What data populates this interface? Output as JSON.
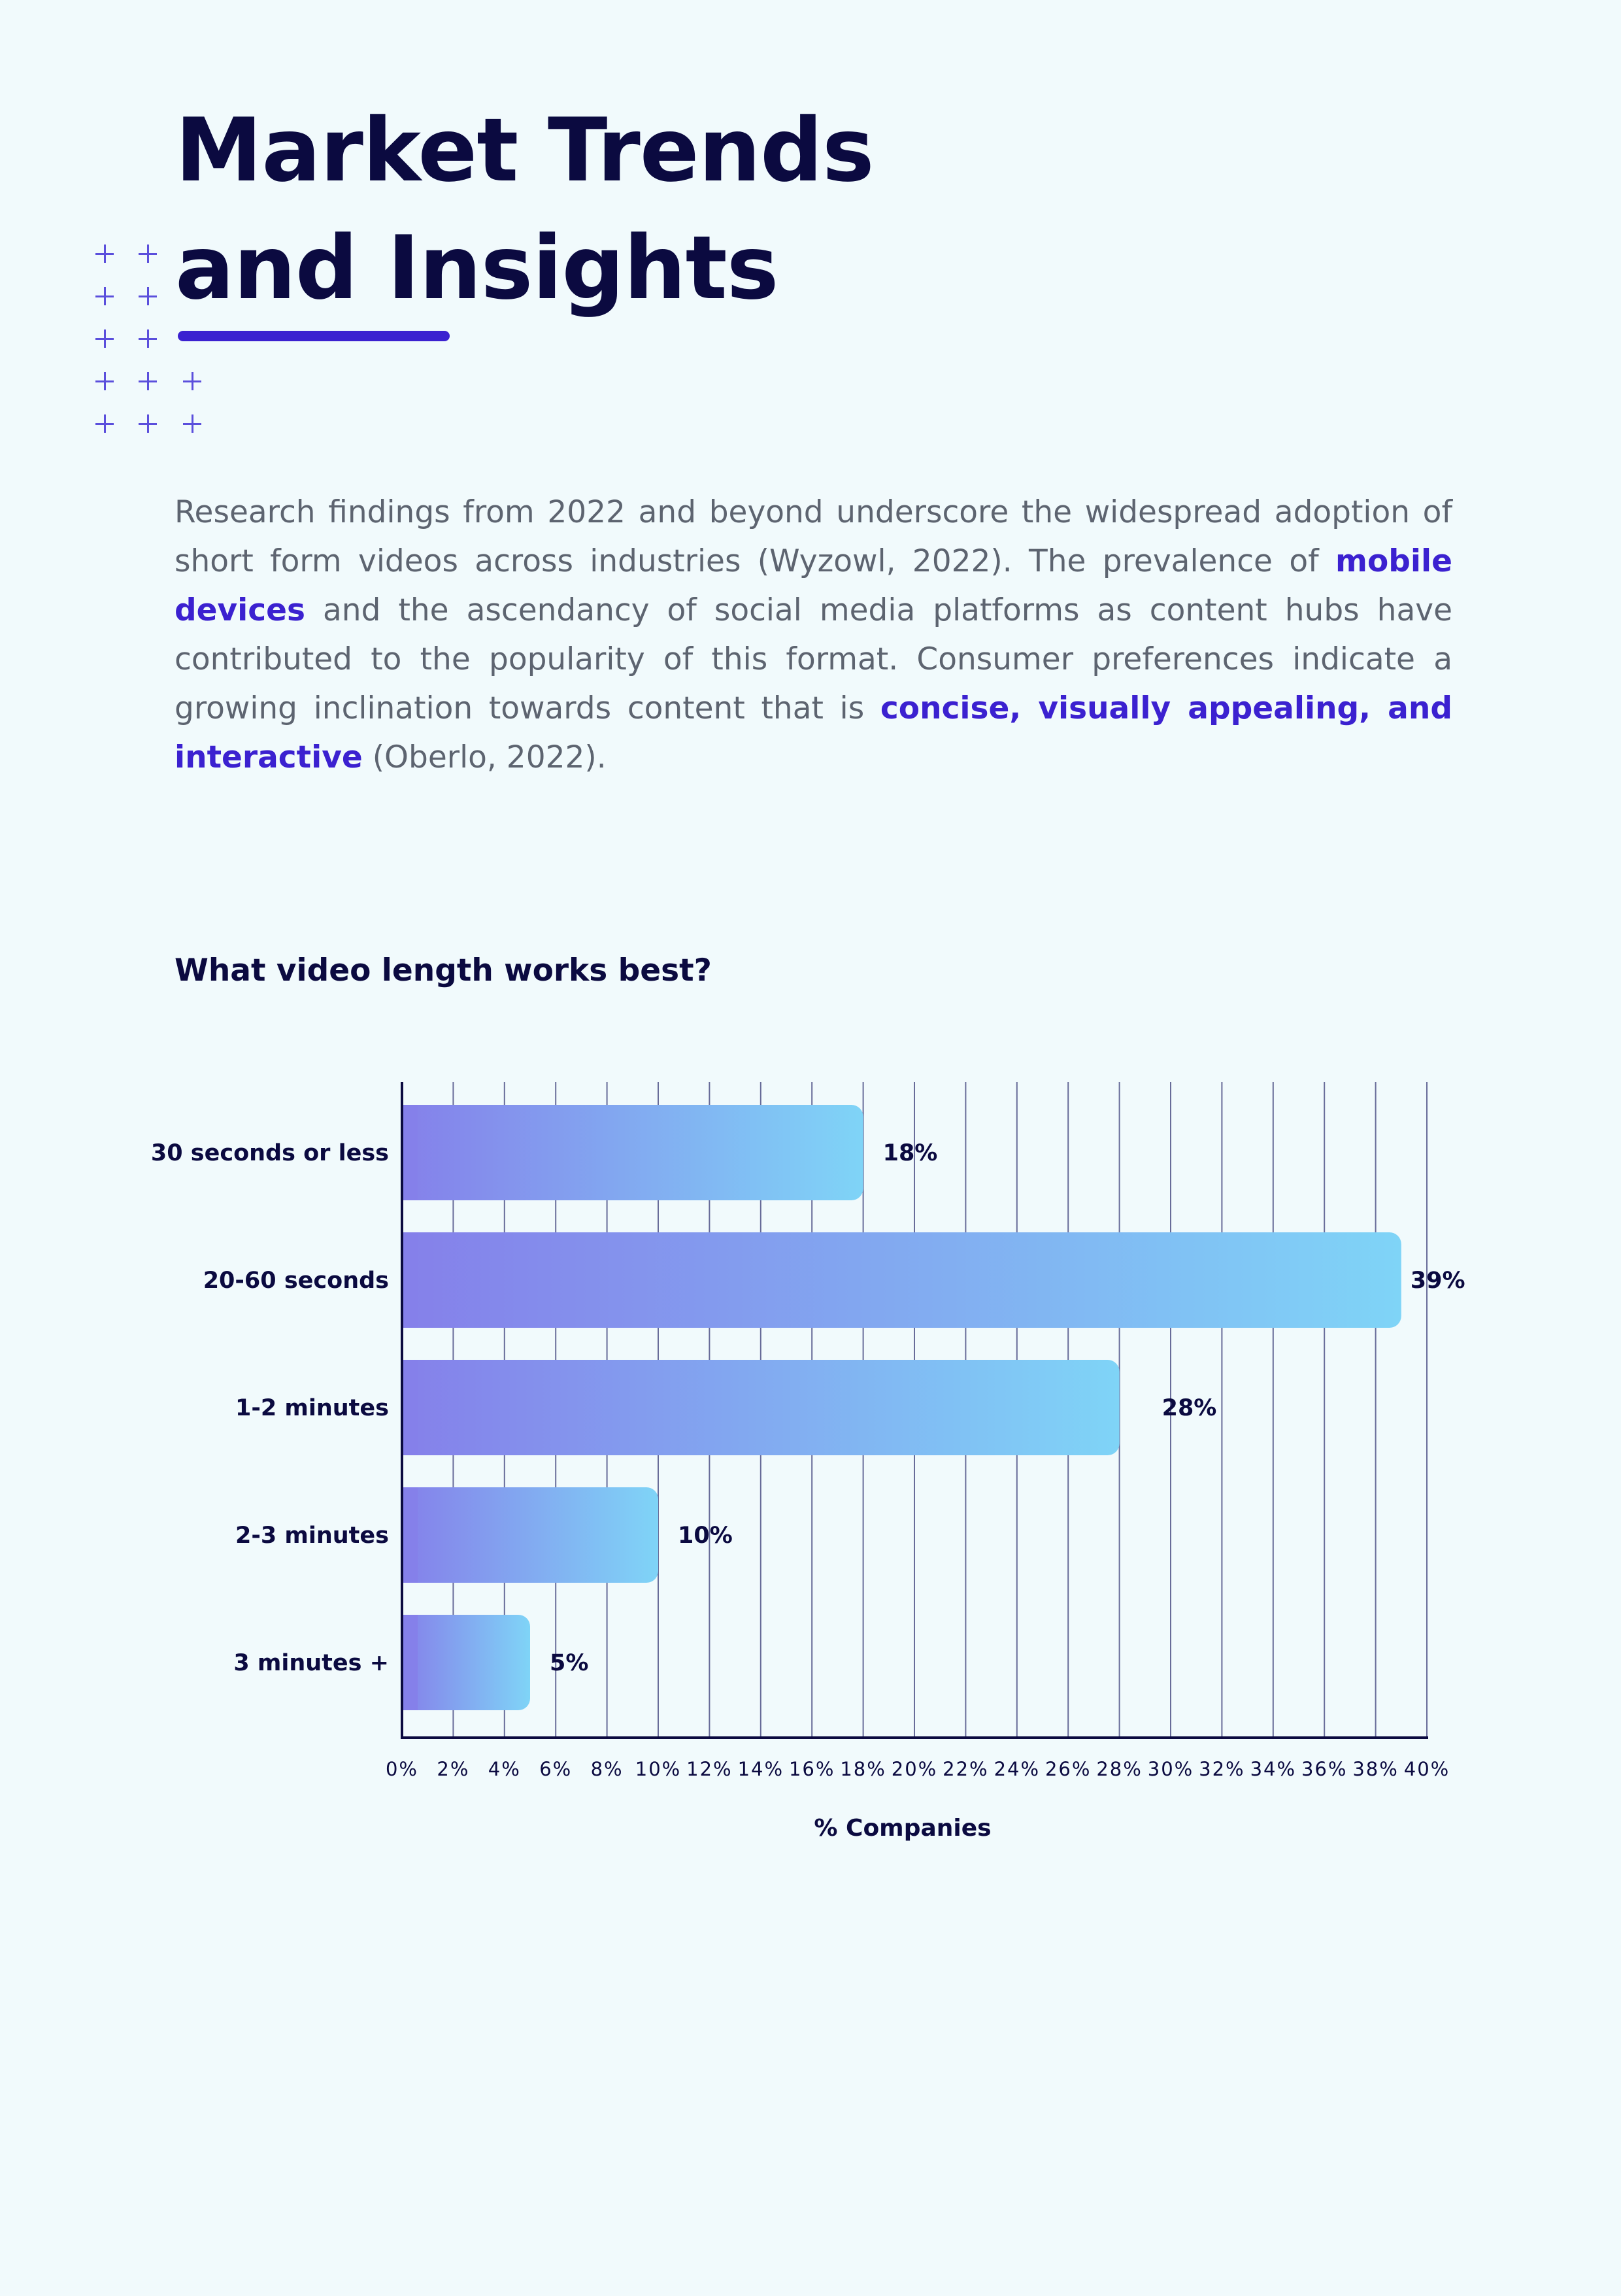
{
  "title": {
    "line1": "Market Trends",
    "line2": "and Insights"
  },
  "intro": {
    "text1": "Research findings from 2022 and beyond underscore the widespread adoption of short form videos across industries (Wyzowl, 2022). The prevalence of ",
    "highlight1": "mobile devices",
    "text2": " and the ascendancy of social media platforms as content hubs have contributed to the popularity of this format. Consumer preferences indicate a growing inclination towards content that is ",
    "highlight2": "concise, visually appealing, and interactive",
    "text3": " (Oberlo, 2022)."
  },
  "colors": {
    "background": "#f1fafc",
    "heading": "#0b0a40",
    "accent": "#3b21d0",
    "body_text": "#5d6470",
    "bar_start": "#8580ea",
    "bar_end": "#7fd4f7",
    "grid": "#3a3c78"
  },
  "chart_data": {
    "type": "bar",
    "orientation": "horizontal",
    "title": "What video length works best?",
    "categories": [
      "30 seconds or less",
      "20-60 seconds",
      "1-2 minutes",
      "2-3 minutes",
      "3 minutes +"
    ],
    "values": [
      18,
      39,
      28,
      10,
      5
    ],
    "data_labels": [
      "18%",
      "39%",
      "28%",
      "10%",
      "5%"
    ],
    "xlabel": "% Companies",
    "ylabel": "",
    "xlim": [
      0,
      40
    ],
    "xticks": [
      "0%",
      "2%",
      "4%",
      "6%",
      "8%",
      "10%",
      "12%",
      "14%",
      "16%",
      "18%",
      "20%",
      "22%",
      "24%",
      "26%",
      "28%",
      "30%",
      "32%",
      "34%",
      "36%",
      "38%",
      "40%"
    ],
    "grid": "vertical",
    "legend": "none"
  }
}
